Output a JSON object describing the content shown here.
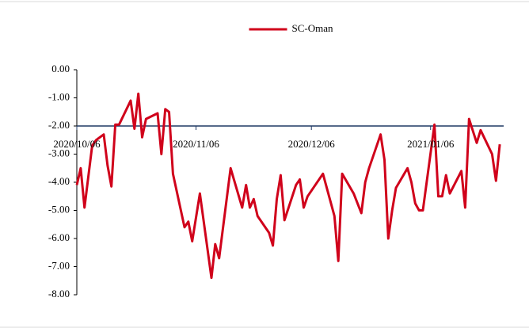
{
  "chart_data": {
    "type": "line",
    "x": [
      "2020/10/06",
      "2020/10/07",
      "2020/10/08",
      "2020/10/10",
      "2020/10/11",
      "2020/10/13",
      "2020/10/14",
      "2020/10/15",
      "2020/10/16",
      "2020/10/17",
      "2020/10/20",
      "2020/10/21",
      "2020/10/22",
      "2020/10/23",
      "2020/10/24",
      "2020/10/27",
      "2020/10/28",
      "2020/10/29",
      "2020/10/30",
      "2020/10/31",
      "2020/11/03",
      "2020/11/04",
      "2020/11/05",
      "2020/11/07",
      "2020/11/10",
      "2020/11/11",
      "2020/11/12",
      "2020/11/15",
      "2020/11/18",
      "2020/11/19",
      "2020/11/20",
      "2020/11/21",
      "2020/11/22",
      "2020/11/25",
      "2020/11/26",
      "2020/11/27",
      "2020/11/28",
      "2020/11/29",
      "2020/12/02",
      "2020/12/03",
      "2020/12/04",
      "2020/12/05",
      "2020/12/09",
      "2020/12/12",
      "2020/12/13",
      "2020/12/14",
      "2020/12/17",
      "2020/12/19",
      "2020/12/20",
      "2020/12/21",
      "2020/12/24",
      "2020/12/25",
      "2020/12/26",
      "2020/12/27",
      "2020/12/28",
      "2020/12/31",
      "2021/01/01",
      "2021/01/02",
      "2021/01/03",
      "2021/01/04",
      "2021/01/07",
      "2021/01/08",
      "2021/01/09",
      "2021/01/10",
      "2021/01/11",
      "2021/01/14",
      "2021/01/15",
      "2021/01/16",
      "2021/01/18",
      "2021/01/19",
      "2021/01/22",
      "2021/01/23",
      "2021/01/24"
    ],
    "series": [
      {
        "name": "SC-Oman",
        "color": "#d0021b",
        "values": [
          -4.1,
          -3.5,
          -4.9,
          -2.7,
          -2.5,
          -2.3,
          -3.4,
          -4.15,
          -1.95,
          -1.95,
          -1.1,
          -2.1,
          -0.85,
          -2.4,
          -1.75,
          -1.55,
          -3.0,
          -1.4,
          -1.5,
          -3.7,
          -5.6,
          -5.4,
          -6.1,
          -4.4,
          -7.4,
          -6.2,
          -6.7,
          -3.5,
          -4.9,
          -4.1,
          -4.9,
          -4.6,
          -5.2,
          -5.8,
          -6.25,
          -4.6,
          -3.75,
          -5.35,
          -4.1,
          -3.9,
          -4.9,
          -4.5,
          -3.7,
          -5.2,
          -6.8,
          -3.7,
          -4.4,
          -5.1,
          -4.0,
          -3.5,
          -2.3,
          -3.2,
          -6.0,
          -5.0,
          -4.2,
          -3.5,
          -4.0,
          -4.75,
          -5.0,
          -5.0,
          -1.95,
          -4.5,
          -4.5,
          -3.75,
          -4.4,
          -3.6,
          -4.9,
          -1.75,
          -2.6,
          -2.15,
          -3.0,
          -3.95,
          -2.65
        ]
      }
    ],
    "xlim": [
      "2020/10/06",
      "2021/01/25"
    ],
    "xticks": [
      "2020/10/06",
      "2020/11/06",
      "2020/12/06",
      "2021/01/06"
    ],
    "ylim": [
      -8,
      0
    ],
    "yticks": [
      {
        "value": 0,
        "label": "0.00"
      },
      {
        "value": -1,
        "label": "-1.00"
      },
      {
        "value": -2,
        "label": "-2.00"
      },
      {
        "value": -3,
        "label": "-3.00"
      },
      {
        "value": -4,
        "label": "-4.00"
      },
      {
        "value": -5,
        "label": "-5.00"
      },
      {
        "value": -6,
        "label": "-6.00"
      },
      {
        "value": -7,
        "label": "-7.00"
      },
      {
        "value": -8,
        "label": "-8.00"
      }
    ],
    "x_axis_crosses": -2,
    "legend": "top"
  }
}
